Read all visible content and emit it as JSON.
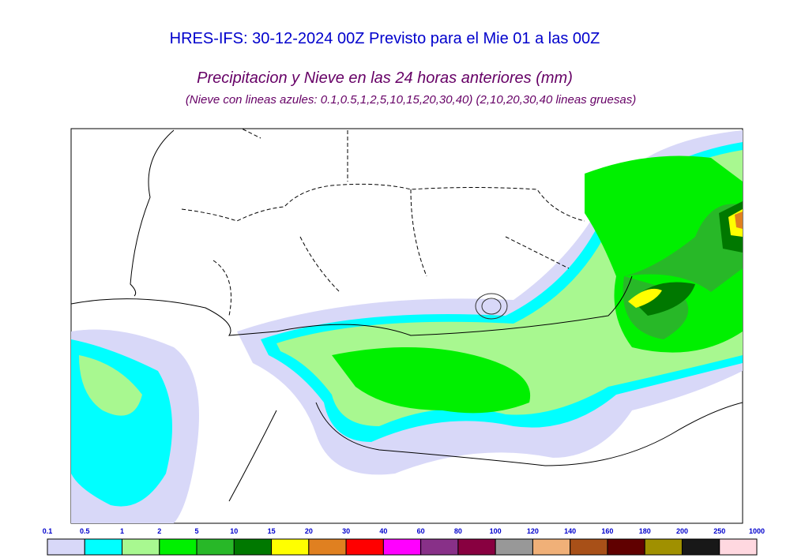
{
  "header": {
    "title": "HRES-IFS: 30-12-2024 00Z Previsto para el Mie 01 a las 00Z",
    "subtitle": "Precipitacion y Nieve en las 24 horas anteriores (mm)",
    "note": "(Nieve con lineas azules: 0.1,0.5,1,2,5,10,15,20,30,40)  (2,10,20,30,40 lineas gruesas)"
  },
  "legend": {
    "labels": [
      "0.1",
      "0.5",
      "1",
      "2",
      "5",
      "10",
      "15",
      "20",
      "30",
      "40",
      "60",
      "80",
      "100",
      "120",
      "140",
      "160",
      "180",
      "200",
      "250",
      "1000"
    ],
    "colors": [
      "#d8d8f8",
      "#00ffff",
      "#a8f890",
      "#00f000",
      "#28b828",
      "#007800",
      "#ffff00",
      "#e08020",
      "#ff0000",
      "#ff00ff",
      "#883088",
      "#880040",
      "#989898",
      "#f0b078",
      "#a85018",
      "#600000",
      "#a09000",
      "#181818",
      "#ffd8e0"
    ]
  }
}
